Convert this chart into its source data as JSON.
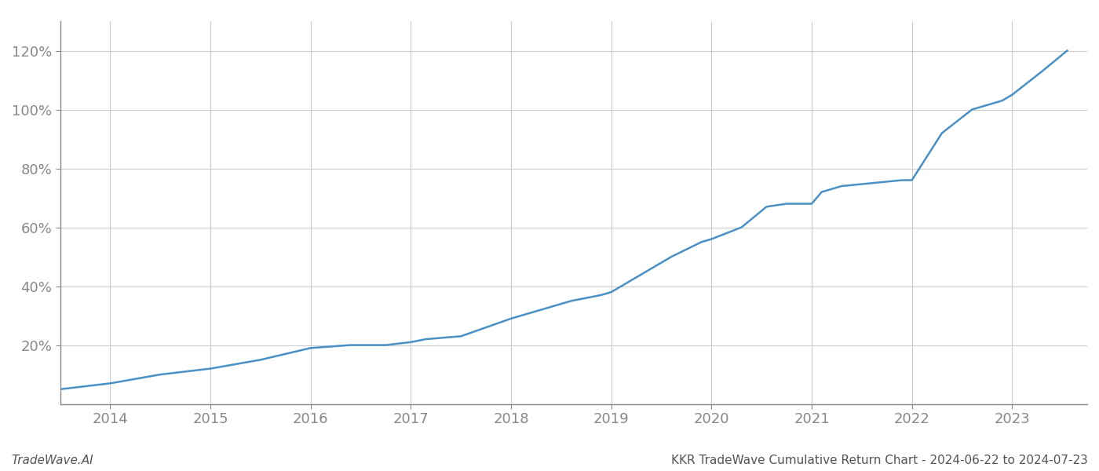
{
  "title": "KKR TradeWave Cumulative Return Chart - 2024-06-22 to 2024-07-23",
  "watermark": "TradeWave.AI",
  "line_color": "#4a90c4",
  "background_color": "#ffffff",
  "grid_color": "#cccccc",
  "x_years": [
    2014,
    2015,
    2016,
    2017,
    2018,
    2019,
    2020,
    2021,
    2022,
    2023
  ],
  "x_data": [
    2013.5,
    2014.0,
    2014.5,
    2015.0,
    2015.5,
    2016.0,
    2016.4,
    2016.75,
    2017.0,
    2017.15,
    2017.5,
    2017.75,
    2018.0,
    2018.3,
    2018.6,
    2018.9,
    2019.0,
    2019.25,
    2019.6,
    2019.9,
    2020.0,
    2020.3,
    2020.55,
    2020.75,
    2021.0,
    2021.1,
    2021.3,
    2021.6,
    2021.9,
    2022.0,
    2022.3,
    2022.6,
    2022.9,
    2023.0,
    2023.3,
    2023.55
  ],
  "y_data": [
    5,
    7,
    10,
    12,
    15,
    19,
    20,
    20,
    21,
    22,
    23,
    26,
    29,
    32,
    35,
    37,
    38,
    43,
    50,
    55,
    56,
    60,
    67,
    68,
    68,
    72,
    74,
    75,
    76,
    76,
    92,
    100,
    103,
    105,
    113,
    120
  ],
  "ylim": [
    0,
    130
  ],
  "xlim": [
    2013.5,
    2023.75
  ],
  "yticks": [
    20,
    40,
    60,
    80,
    100,
    120
  ],
  "title_fontsize": 11,
  "tick_fontsize": 13,
  "watermark_fontsize": 11,
  "line_width": 1.8,
  "spine_color": "#888888",
  "tick_color": "#888888",
  "label_color": "#888888"
}
